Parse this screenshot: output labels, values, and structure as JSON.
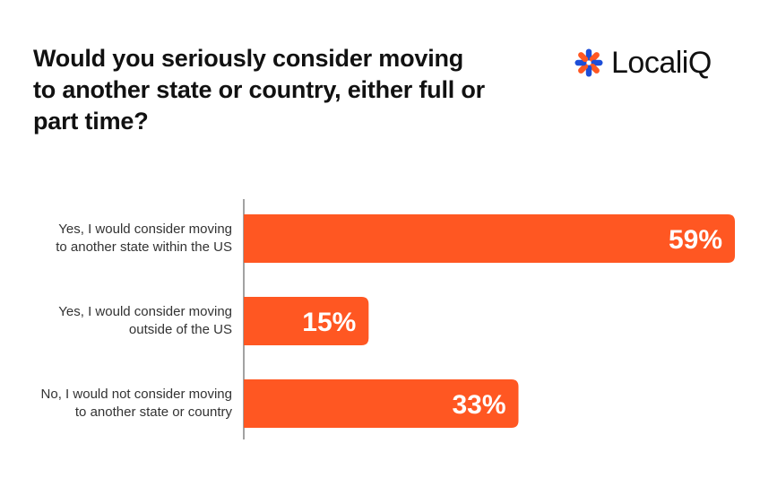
{
  "title_lines": [
    "Would you seriously consider moving",
    "to another state or country, either full or",
    "part time?"
  ],
  "logo": {
    "text": "LocaliQ",
    "icon": "asterisk-logo-icon",
    "colors": [
      "#1d4ed8",
      "#ff5722"
    ]
  },
  "chart_data": {
    "type": "bar",
    "orientation": "horizontal",
    "title": "Would you seriously consider moving to another state or country, either full or part time?",
    "categories": [
      [
        "Yes, I would consider moving",
        "to another state within the US"
      ],
      [
        "Yes, I would consider moving",
        "outside of the US"
      ],
      [
        "No, I would not consider moving",
        "to another state or country"
      ]
    ],
    "values": [
      59,
      15,
      33
    ],
    "value_labels": [
      "59%",
      "15%",
      "33%"
    ],
    "xlim": [
      0,
      59
    ],
    "bar_color": "#ff5722",
    "grid": false,
    "legend": false
  }
}
